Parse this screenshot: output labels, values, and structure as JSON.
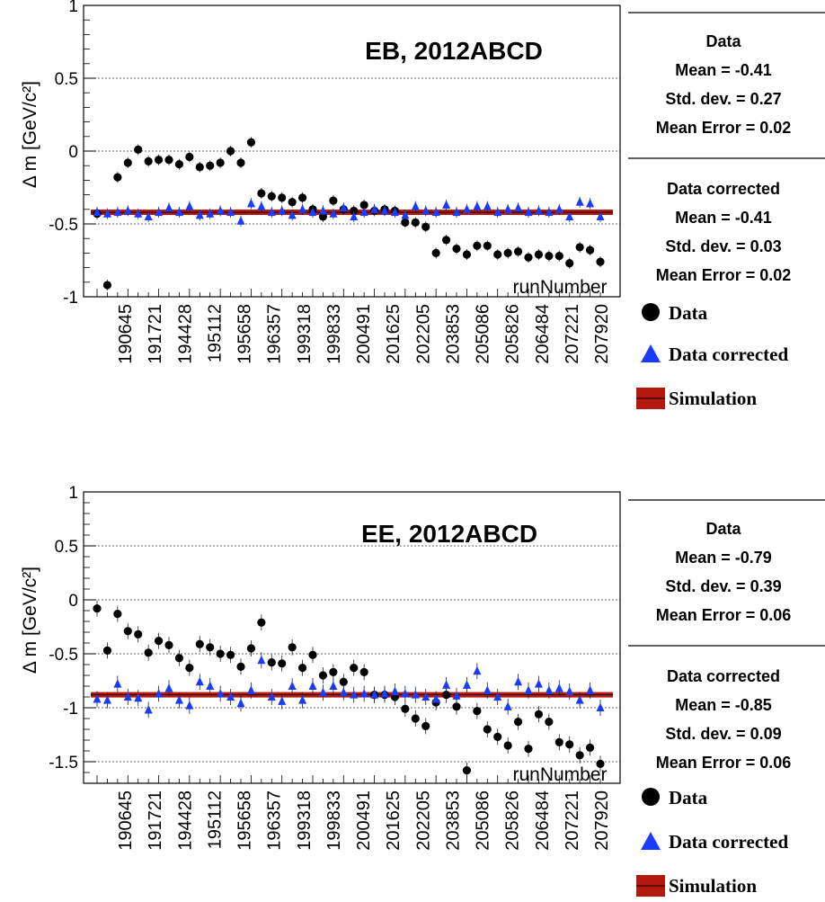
{
  "charts": [
    {
      "title": "EB, 2012ABCD",
      "ylabel": "Δ m [GeV/c²]",
      "xlabel": "runNumber",
      "stats": {
        "data": {
          "header": "Data",
          "mean": "Mean = -0.41",
          "std": "Std. dev. = 0.27",
          "err": "Mean Error = 0.02"
        },
        "corrected": {
          "header": "Data corrected",
          "mean": "Mean = -0.41",
          "std": "Std. dev. = 0.03",
          "err": "Mean Error = 0.02"
        }
      },
      "legend": [
        "Data",
        "Data corrected",
        "Simulation"
      ]
    },
    {
      "title": "EE, 2012ABCD",
      "ylabel": "Δ m [GeV/c²]",
      "xlabel": "runNumber",
      "stats": {
        "data": {
          "header": "Data",
          "mean": "Mean = -0.79",
          "std": "Std. dev. = 0.39",
          "err": "Mean Error = 0.06"
        },
        "corrected": {
          "header": "Data corrected",
          "mean": "Mean = -0.85",
          "std": "Std. dev. = 0.09",
          "err": "Mean Error = 0.06"
        }
      },
      "legend": [
        "Data",
        "Data corrected",
        "Simulation"
      ]
    }
  ],
  "chart_data": [
    {
      "type": "scatter",
      "title": "EB, 2012ABCD",
      "xlabel": "runNumber",
      "ylabel": "Δ m [GeV/c²]",
      "ylim": [
        -1,
        1
      ],
      "yticks": [
        -1,
        -0.5,
        0,
        0.5,
        1
      ],
      "ytick_labels": [
        "-1",
        "-0.5",
        "0",
        "0.5",
        "1"
      ],
      "grid": "horizontal-dashed",
      "x_tick_labels": [
        "190645",
        "191721",
        "194428",
        "195112",
        "195658",
        "196357",
        "199318",
        "199833",
        "200491",
        "201625",
        "202205",
        "203853",
        "205086",
        "205826",
        "206484",
        "207221",
        "207920"
      ],
      "simulation_value": -0.42,
      "series": [
        {
          "name": "Data",
          "marker": "circle",
          "color": "#000000",
          "values": [
            -0.43,
            -0.92,
            -0.18,
            -0.08,
            0.01,
            -0.07,
            -0.06,
            -0.06,
            -0.09,
            -0.04,
            -0.11,
            -0.1,
            -0.08,
            0.0,
            -0.08,
            0.06,
            -0.29,
            -0.31,
            -0.32,
            -0.35,
            -0.32,
            -0.4,
            -0.45,
            -0.34,
            -0.4,
            -0.41,
            -0.37,
            -0.41,
            -0.4,
            -0.41,
            -0.49,
            -0.49,
            -0.52,
            -0.7,
            -0.61,
            -0.67,
            -0.71,
            -0.65,
            -0.65,
            -0.71,
            -0.7,
            -0.69,
            -0.73,
            -0.71,
            -0.72,
            -0.72,
            -0.77,
            -0.66,
            -0.68,
            -0.76
          ]
        },
        {
          "name": "Data corrected",
          "marker": "triangle",
          "color": "#1a3cff",
          "values": [
            -0.42,
            -0.43,
            -0.42,
            -0.41,
            -0.43,
            -0.45,
            -0.42,
            -0.39,
            -0.42,
            -0.38,
            -0.44,
            -0.43,
            -0.41,
            -0.42,
            -0.48,
            -0.36,
            -0.38,
            -0.42,
            -0.41,
            -0.44,
            -0.4,
            -0.42,
            -0.41,
            -0.43,
            -0.39,
            -0.45,
            -0.42,
            -0.4,
            -0.41,
            -0.42,
            -0.44,
            -0.38,
            -0.41,
            -0.42,
            -0.37,
            -0.42,
            -0.4,
            -0.38,
            -0.38,
            -0.42,
            -0.4,
            -0.39,
            -0.42,
            -0.41,
            -0.42,
            -0.4,
            -0.45,
            -0.35,
            -0.36,
            -0.45
          ]
        }
      ]
    },
    {
      "type": "scatter",
      "title": "EE, 2012ABCD",
      "xlabel": "runNumber",
      "ylabel": "Δ m [GeV/c²]",
      "ylim": [
        -1.7,
        1
      ],
      "yticks": [
        -1.5,
        -1,
        -0.5,
        0,
        0.5,
        1
      ],
      "ytick_labels": [
        "-1.5",
        "-1",
        "-0.5",
        "0",
        "0.5",
        "1"
      ],
      "grid": "horizontal-dashed",
      "x_tick_labels": [
        "190645",
        "191721",
        "194428",
        "195112",
        "195658",
        "196357",
        "199318",
        "199833",
        "200491",
        "201625",
        "202205",
        "203853",
        "205086",
        "205826",
        "206484",
        "207221",
        "207920"
      ],
      "simulation_value": -0.88,
      "series": [
        {
          "name": "Data",
          "marker": "circle",
          "color": "#000000",
          "values": [
            -0.08,
            -0.47,
            -0.13,
            -0.29,
            -0.32,
            -0.49,
            -0.38,
            -0.42,
            -0.54,
            -0.63,
            -0.41,
            -0.44,
            -0.5,
            -0.51,
            -0.62,
            -0.45,
            -0.21,
            -0.58,
            -0.59,
            -0.44,
            -0.63,
            -0.51,
            -0.7,
            -0.67,
            -0.76,
            -0.63,
            -0.67,
            -0.88,
            -0.88,
            -0.9,
            -1.01,
            -1.1,
            -1.17,
            -0.95,
            -0.88,
            -0.99,
            -1.58,
            -1.03,
            -1.2,
            -1.27,
            -1.35,
            -1.13,
            -1.38,
            -1.06,
            -1.13,
            -1.32,
            -1.34,
            -1.44,
            -1.37,
            -1.52
          ]
        },
        {
          "name": "Data corrected",
          "marker": "triangle",
          "color": "#1a3cff",
          "values": [
            -0.92,
            -0.93,
            -0.78,
            -0.9,
            -0.91,
            -1.02,
            -0.87,
            -0.82,
            -0.93,
            -0.98,
            -0.76,
            -0.8,
            -0.87,
            -0.9,
            -0.96,
            -0.84,
            -0.56,
            -0.9,
            -0.94,
            -0.8,
            -0.93,
            -0.8,
            -0.86,
            -0.8,
            -0.86,
            -0.88,
            -0.87,
            -0.88,
            -0.87,
            -0.85,
            -0.87,
            -0.88,
            -0.9,
            -0.92,
            -0.79,
            -0.89,
            -0.79,
            -0.66,
            -0.84,
            -0.9,
            -0.99,
            -0.76,
            -0.84,
            -0.78,
            -0.84,
            -0.82,
            -0.85,
            -0.93,
            -0.84,
            -1.0
          ]
        }
      ]
    }
  ]
}
